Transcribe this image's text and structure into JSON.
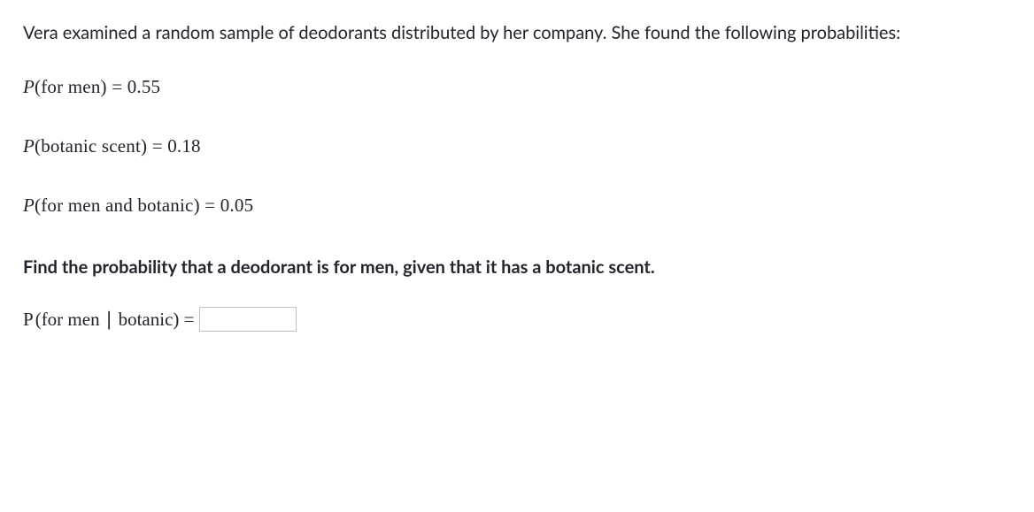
{
  "intro": "Vera examined a random sample of deodorants distributed by her company. She found the following probabilities:",
  "lines": {
    "l1": {
      "var": "P",
      "event": "for men",
      "value": "0.55"
    },
    "l2": {
      "var": "P",
      "event": "botanic scent",
      "value": "0.18"
    },
    "l3": {
      "var": "P",
      "event": "for men and botanic",
      "value": "0.05"
    }
  },
  "question": "Find the probability that a deodorant is for men, given that it has a botanic scent.",
  "answer": {
    "var": "P",
    "event": "for men ∣ botanic",
    "value": ""
  },
  "colors": {
    "text": "#21242c",
    "background": "#ffffff",
    "input_border": "#c0c0c0"
  },
  "fontsize": {
    "body": 20,
    "math": 21
  }
}
